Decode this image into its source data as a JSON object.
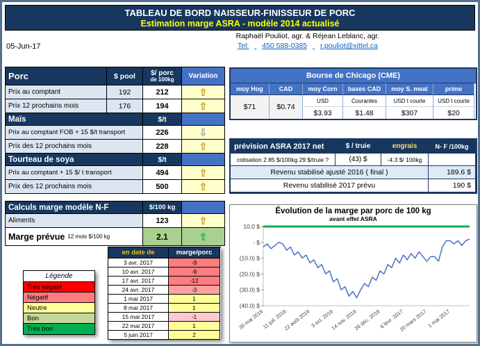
{
  "window": {
    "title_line1": "TABLEAU DE BORD NAISSEUR-FINISSEUR DE PORC",
    "title_line2": "Estimation marge ASRA - modèle 2014 actualisé"
  },
  "contact": {
    "names": "Raphaël Pouliot, agr.    &    Réjean Leblanc, agr.",
    "tel_label": "Tel:",
    "phone": "450 588-0385",
    "email": "r.pouliot@xittel.ca"
  },
  "date": "05-Jun-17",
  "porc_table": {
    "header": {
      "title": "Porc",
      "col1": "$ pool",
      "col2_line1": "$/ porc",
      "col2_line2": "de 100kg",
      "col3": "Variation"
    },
    "rows": [
      {
        "label": "Prix au comptant",
        "pool": "192",
        "porc": "212",
        "arrow": "⇧",
        "arrow_color": "#BF8F00",
        "cell_bg": "#FFFFCC"
      },
      {
        "label": "Prix 12 prochains mois",
        "pool": "176",
        "porc": "194",
        "arrow": "⇧",
        "arrow_color": "#BF8F00",
        "cell_bg": "#FFFFCC"
      }
    ]
  },
  "mais": {
    "title": "Maïs",
    "unit": "$/t",
    "rows": [
      {
        "label": "Prix au comptant FOB + 15 $/t transport",
        "value": "226",
        "arrow": "⇩",
        "arrow_color": "#8497B0",
        "cell_bg": "#FFFFCC"
      },
      {
        "label": "Prix des 12 prochains mois",
        "value": "228",
        "arrow": "⇧",
        "arrow_color": "#BF8F00",
        "cell_bg": "#FFFFCC"
      }
    ]
  },
  "tourteau": {
    "title": "Tourteau de soya",
    "unit": "$/t",
    "rows": [
      {
        "label": "Prix au comptant + 15 $/ t  transport",
        "value": "494",
        "arrow": "⇧",
        "arrow_color": "#BF8F00",
        "cell_bg": "#FFFFCC"
      },
      {
        "label": "Prix des 12 prochains mois",
        "value": "500",
        "arrow": "⇧",
        "arrow_color": "#BF8F00",
        "cell_bg": "#FFFFCC"
      }
    ]
  },
  "calculs": {
    "title": "Calculs marge  modèle N-F",
    "unit": "$/100 kg",
    "aliments": {
      "label": "Aliments",
      "value": "123",
      "arrow": "⇧",
      "arrow_color": "#BF8F00",
      "cell_bg": "#FFFFCC"
    },
    "marge": {
      "label": "Marge prévue",
      "label_suffix": "12 mois  $/100 kg",
      "value": "2.1",
      "arrow": "⇧",
      "arrow_color": "#00B050",
      "cell_bg": "#A9D08E"
    }
  },
  "legend": {
    "title": "Légende",
    "items": [
      {
        "label": "Très négatif",
        "color": "#FF0000"
      },
      {
        "label": "Négatif",
        "color": "#FF7C80"
      },
      {
        "label": "Neutre",
        "color": "#FFFF99"
      },
      {
        "label": "Bon",
        "color": "#C4D79B"
      },
      {
        "label": "Très bon",
        "color": "#00B050"
      }
    ]
  },
  "marge_table": {
    "header": {
      "col1": "en date de",
      "col2": "marge/porc"
    },
    "rows": [
      {
        "date": "3 avr. 2017",
        "value": "-9",
        "color": "#FF7C80"
      },
      {
        "date": "10 avr. 2017",
        "value": "-9",
        "color": "#FF7C80"
      },
      {
        "date": "17 avr. 2017",
        "value": "-12",
        "color": "#FF7C80"
      },
      {
        "date": "24 avr. 2017",
        "value": "-3",
        "color": "#FFA0A0"
      },
      {
        "date": "1 mai 2017",
        "value": "1",
        "color": "#FFFF99"
      },
      {
        "date": "8 mai 2017",
        "value": "1",
        "color": "#FFFF99"
      },
      {
        "date": "15 mai 2017",
        "value": "-1",
        "color": "#FFC7CE"
      },
      {
        "date": "22 mai 2017",
        "value": "1",
        "color": "#FFFF99"
      },
      {
        "date": "5 juin 2017",
        "value": "2",
        "color": "#FFFF99"
      }
    ]
  },
  "cme": {
    "title": "Bourse de Chicago (CME)",
    "columns": [
      {
        "h": "moy Hog",
        "sub": "",
        "value": "$71"
      },
      {
        "h": "CAD",
        "sub": "",
        "value": "$0.74"
      },
      {
        "h": "moy Corn",
        "sub": "USD",
        "value": "$3.93"
      },
      {
        "h": "bases CAD",
        "sub": "Courantes",
        "value": "$1.48"
      },
      {
        "h": "moy S. meal",
        "sub": "USD t courte",
        "value": "$307"
      },
      {
        "h": "prime",
        "sub": "USD t courte",
        "value": "$20"
      }
    ]
  },
  "asra": {
    "title": "prévision ASRA 2017 net",
    "col_truie": "$ / truie",
    "col_engrais": "engrais",
    "col_nf": "N- F /100kg",
    "cotisation_label": "cotisation 2.85 $/100kg  29 $/truie ?",
    "truie_value": "(43) $",
    "engrais_value": "-4.3 $/ 100kg",
    "rows": [
      {
        "label": "Revenu stabilisé ajusté 2016 ( final )",
        "value": "189.6  $"
      },
      {
        "label": "Revenu stabilisé 2017 prévu",
        "value": "190  $"
      }
    ]
  },
  "chart_data": {
    "type": "line",
    "title": "Évolution de la marge par porc de 100 kg",
    "subtitle": "avant effet ASRA",
    "ylim": [
      -40,
      10
    ],
    "y_ticks": [
      {
        "v": 10,
        "label": "10.0 $"
      },
      {
        "v": 0,
        "label": "- $"
      },
      {
        "v": -10,
        "label": "(10.0) $"
      },
      {
        "v": -20,
        "label": "(20.0) $"
      },
      {
        "v": -30,
        "label": "(30.0) $"
      },
      {
        "v": -40,
        "label": "(40.0) $"
      }
    ],
    "x_tick_labels": [
      "30 mai 2016",
      "11 juil. 2016",
      "22 août 2016",
      "3 oct. 2016",
      "14 nov. 2016",
      "26 déc. 2016",
      "6 févr. 2017",
      "20 mars 2017",
      "1 mai 2017"
    ],
    "x_tick_positions": [
      0,
      6,
      12,
      18,
      24,
      30,
      36,
      42,
      48
    ],
    "reference_line": {
      "value": 10,
      "color": "#00B050"
    },
    "legend_position": "none",
    "grid": false,
    "series": [
      {
        "name": "marge par porc",
        "color": "#4472C4",
        "values": [
          -3,
          -1,
          -4,
          -2,
          0,
          -1,
          -5,
          -3,
          -8,
          -6,
          -10,
          -8,
          -13,
          -11,
          -16,
          -14,
          -20,
          -18,
          -25,
          -23,
          -30,
          -28,
          -34,
          -31,
          -35,
          -30,
          -26,
          -28,
          -22,
          -24,
          -18,
          -20,
          -14,
          -16,
          -10,
          -13,
          -8,
          -11,
          -7,
          -10,
          -6,
          -9,
          -12,
          -9,
          -9,
          -12,
          -3,
          1,
          1,
          -1,
          1,
          -2,
          1,
          2
        ]
      }
    ]
  }
}
